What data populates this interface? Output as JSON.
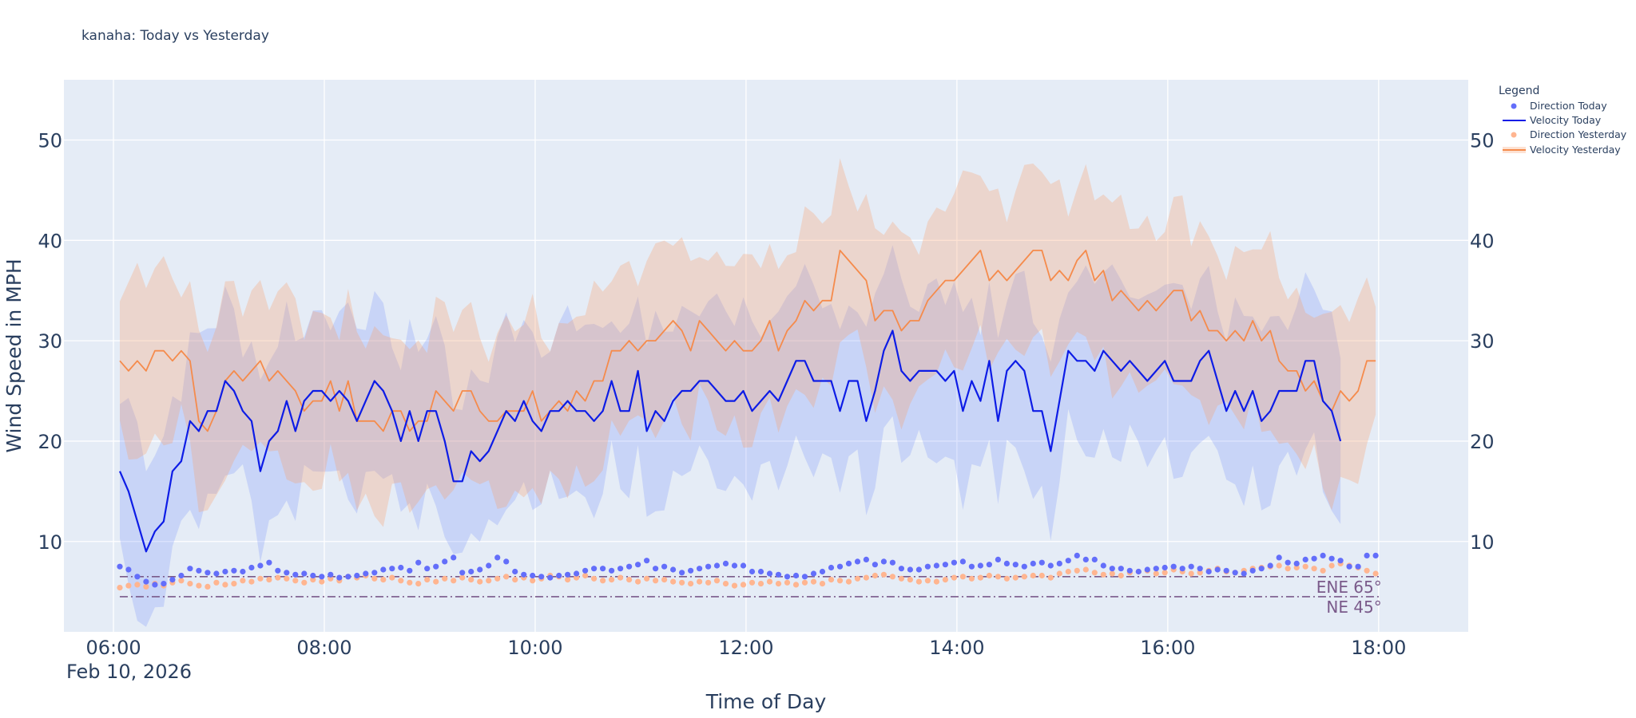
{
  "chart_data": {
    "type": "line",
    "title": "kanaha: Today vs Yesterday",
    "xlabel": "Time of Day",
    "ylabel": "Wind Speed in MPH",
    "date_label": "Feb 10, 2026",
    "x_range_hours": [
      5.53,
      18.85
    ],
    "ylim": [
      1,
      56
    ],
    "y_ticks": [
      10,
      20,
      30,
      40,
      50
    ],
    "x_ticks": [
      {
        "h": 6,
        "label": "06:00"
      },
      {
        "h": 8,
        "label": "08:00"
      },
      {
        "h": 10,
        "label": "10:00"
      },
      {
        "h": 12,
        "label": "12:00"
      },
      {
        "h": 14,
        "label": "14:00"
      },
      {
        "h": 16,
        "label": "16:00"
      },
      {
        "h": 18,
        "label": "18:00"
      }
    ],
    "grid": true,
    "legend": {
      "title": "Legend",
      "placement": "top-right outside",
      "entries": [
        {
          "name": "Direction Today",
          "symbol": "marker",
          "color": "#636efa"
        },
        {
          "name": "Velocity Today",
          "symbol": "line",
          "color": "#0d1ce6"
        },
        {
          "name": "Direction Yesterday",
          "symbol": "marker",
          "color": "#ffb590"
        },
        {
          "name": "Velocity Yesterday",
          "symbol": "line",
          "color": "#f58b4c"
        }
      ]
    },
    "start_hour": 6.06,
    "step_hours": 0.0833,
    "series": [
      {
        "name": "Velocity Today",
        "color": "#0d1ce6",
        "band_color": "rgba(99,126,250,0.22)",
        "values": [
          17,
          15,
          12,
          9,
          11,
          12,
          17,
          18,
          22,
          21,
          23,
          23,
          26,
          25,
          23,
          22,
          17,
          20,
          21,
          24,
          21,
          24,
          25,
          25,
          24,
          25,
          24,
          22,
          24,
          26,
          25,
          23,
          20,
          23,
          20,
          23,
          23,
          20,
          16,
          16,
          19,
          18,
          19,
          21,
          23,
          22,
          24,
          22,
          21,
          23,
          23,
          24,
          23,
          23,
          22,
          23,
          26,
          23,
          23,
          27,
          21,
          23,
          22,
          24,
          25,
          25,
          26,
          26,
          25,
          24,
          24,
          25,
          23,
          24,
          25,
          24,
          26,
          28,
          28,
          26,
          26,
          26,
          23,
          26,
          26,
          22,
          25,
          29,
          31,
          27,
          26,
          27,
          27,
          27,
          26,
          27,
          23,
          26,
          24,
          28,
          22,
          27,
          28,
          27,
          23,
          23,
          19,
          24,
          29,
          28,
          28,
          27,
          29,
          28,
          27,
          28,
          27,
          26,
          27,
          28,
          26,
          26,
          26,
          28,
          29,
          26,
          23,
          25,
          23,
          25,
          22,
          23,
          25,
          25,
          25,
          28,
          28,
          24,
          23,
          20
        ]
      },
      {
        "name": "Velocity Yesterday",
        "color": "#f58b4c",
        "band_color": "rgba(250,160,110,0.3)",
        "values": [
          28,
          27,
          28,
          27,
          29,
          29,
          28,
          29,
          28,
          22,
          21,
          23,
          26,
          27,
          26,
          27,
          28,
          26,
          27,
          26,
          25,
          23,
          24,
          24,
          26,
          23,
          26,
          22,
          22,
          22,
          21,
          23,
          23,
          21,
          22,
          22,
          25,
          24,
          23,
          25,
          25,
          23,
          22,
          22,
          23,
          23,
          23,
          25,
          22,
          23,
          24,
          23,
          25,
          24,
          26,
          26,
          29,
          29,
          30,
          29,
          30,
          30,
          31,
          32,
          31,
          29,
          32,
          31,
          30,
          29,
          30,
          29,
          29,
          30,
          32,
          29,
          31,
          32,
          34,
          33,
          34,
          34,
          39,
          38,
          37,
          36,
          32,
          33,
          33,
          31,
          32,
          32,
          34,
          35,
          36,
          36,
          37,
          38,
          39,
          36,
          37,
          36,
          37,
          38,
          39,
          39,
          36,
          37,
          36,
          38,
          39,
          36,
          37,
          34,
          35,
          34,
          33,
          34,
          33,
          34,
          35,
          35,
          32,
          33,
          31,
          31,
          30,
          31,
          30,
          32,
          30,
          31,
          28,
          27,
          27,
          25,
          26,
          24,
          23,
          25,
          24,
          25,
          28,
          28
        ]
      },
      {
        "name": "Direction Today",
        "color": "#636efa",
        "values": [
          7.5,
          7.2,
          6.5,
          6,
          5.7,
          5.8,
          6.2,
          6.6,
          7.3,
          7.1,
          6.9,
          6.8,
          7,
          7.1,
          7,
          7.4,
          7.6,
          7.9,
          7.1,
          6.9,
          6.7,
          6.8,
          6.6,
          6.5,
          6.7,
          6.4,
          6.5,
          6.6,
          6.8,
          6.9,
          7.2,
          7.3,
          7.4,
          7.1,
          7.9,
          7.3,
          7.5,
          8,
          8.4,
          6.9,
          7,
          7.2,
          7.6,
          8.4,
          8,
          7,
          6.7,
          6.6,
          6.5,
          6.4,
          6.6,
          6.7,
          6.8,
          7.1,
          7.3,
          7.3,
          7.1,
          7.3,
          7.5,
          7.7,
          8.1,
          7.3,
          7.5,
          7.2,
          6.9,
          7.1,
          7.3,
          7.5,
          7.6,
          7.8,
          7.6,
          7.6,
          7,
          7,
          6.8,
          6.7,
          6.5,
          6.6,
          6.5,
          6.8,
          7,
          7.4,
          7.5,
          7.8,
          8,
          8.2,
          7.7,
          8,
          7.9,
          7.3,
          7.2,
          7.2,
          7.5,
          7.6,
          7.7,
          7.9,
          8,
          7.5,
          7.6,
          7.7,
          8.2,
          7.8,
          7.7,
          7.5,
          7.8,
          7.9,
          7.6,
          7.8,
          8.1,
          8.6,
          8.2,
          8.2,
          7.6,
          7.3,
          7.3,
          7.1,
          7,
          7.2,
          7.3,
          7.4,
          7.5,
          7.3,
          7.5,
          7.3,
          7,
          7.2,
          7.1,
          6.9,
          6.8,
          7.1,
          7.3,
          7.6,
          8.4,
          7.9,
          7.8,
          8.2,
          8.3,
          8.6,
          8.3,
          8.1,
          7.5,
          7.5,
          8.6,
          8.6
        ]
      },
      {
        "name": "Direction Yesterday",
        "color": "#ffb590",
        "values": [
          5.4,
          5.6,
          5.7,
          5.5,
          5.8,
          5.6,
          5.9,
          6.1,
          5.8,
          5.6,
          5.5,
          5.9,
          5.7,
          5.8,
          6.1,
          6,
          6.3,
          6.2,
          6.4,
          6.3,
          6.1,
          5.9,
          6.2,
          6,
          6.3,
          6.1,
          6.5,
          6.4,
          6.6,
          6.3,
          6.2,
          6.4,
          6.1,
          5.9,
          5.8,
          6.2,
          6,
          6.3,
          6.1,
          6.4,
          6.2,
          6,
          6.1,
          6.3,
          6.5,
          6.2,
          6.4,
          6.1,
          6.3,
          6.6,
          6.5,
          6.2,
          6.4,
          6.6,
          6.3,
          6.1,
          6.2,
          6.4,
          6.2,
          6,
          6.3,
          6.1,
          6.2,
          6,
          5.9,
          5.8,
          6,
          5.9,
          6.1,
          5.8,
          5.6,
          5.7,
          5.9,
          5.8,
          6,
          5.8,
          5.9,
          5.7,
          5.9,
          6,
          5.8,
          6.2,
          6.1,
          6,
          6.3,
          6.4,
          6.6,
          6.7,
          6.5,
          6.3,
          6.2,
          6,
          6.1,
          6,
          6.2,
          6.4,
          6.5,
          6.3,
          6.4,
          6.6,
          6.5,
          6.3,
          6.4,
          6.5,
          6.6,
          6.6,
          6.4,
          6.8,
          7,
          7.1,
          7.2,
          6.9,
          6.7,
          6.8,
          6.6,
          6.9,
          7,
          7.1,
          6.8,
          6.9,
          7.2,
          7,
          6.8,
          6.9,
          7.1,
          7.3,
          7,
          6.9,
          7.1,
          7.3,
          7.4,
          7.5,
          7.6,
          7.3,
          7.4,
          7.5,
          7.3,
          7.1,
          7.6,
          7.8,
          7.6,
          7.4,
          7.1,
          6.8
        ]
      }
    ],
    "annotations": [
      {
        "label": "ENE 65°",
        "y": 6.5,
        "color": "#7a5a8a"
      },
      {
        "label": "NE 45°",
        "y": 4.5,
        "color": "#7a5a8a"
      }
    ]
  }
}
